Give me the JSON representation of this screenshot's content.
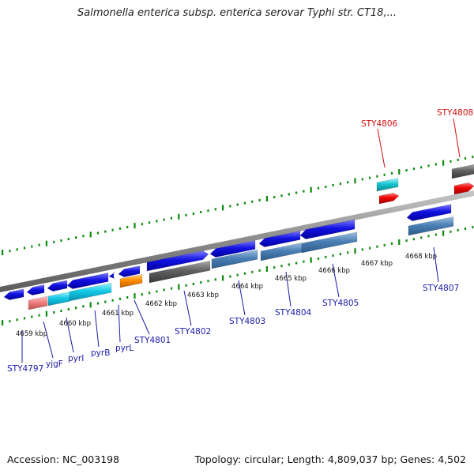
{
  "title": "Salmonella enterica subsp. enterica serovar Typhi str. CT18,...",
  "footer": {
    "accession": "Accession: NC_003198",
    "summary": "Topology: circular; Length: 4,809,037 bp; Genes: 4,502"
  },
  "kbp_labels": [
    "4659 kbp",
    "4660 kbp",
    "4661 kbp",
    "4662 kbp",
    "4663 kbp",
    "4664 kbp",
    "4665 kbp",
    "4666 kbp",
    "4667 kbp",
    "4668 kbp"
  ],
  "gene_labels": [
    {
      "text": "STY4797",
      "color": "#1a1aa8"
    },
    {
      "text": "yjgF",
      "color": "#1a1aa8"
    },
    {
      "text": "pyrI",
      "color": "#1a1aa8"
    },
    {
      "text": "pyrB",
      "color": "#1a1aa8"
    },
    {
      "text": "pyrL",
      "color": "#1a1aa8"
    },
    {
      "text": "STY4801",
      "color": "#1a1aa8"
    },
    {
      "text": "STY4802",
      "color": "#1a1aa8"
    },
    {
      "text": "STY4803",
      "color": "#1a1aa8"
    },
    {
      "text": "STY4804",
      "color": "#1a1aa8"
    },
    {
      "text": "STY4805",
      "color": "#1a1aa8"
    },
    {
      "text": "STY4807",
      "color": "#1a1aa8"
    },
    {
      "text": "STY4806",
      "color": "#d01010"
    },
    {
      "text": "STY4808",
      "color": "#d01010"
    }
  ],
  "colors": {
    "gene_blue": "#1212e0",
    "steel_blue": "#4a7fb5",
    "cyan": "#14c8e6",
    "teal": "#18c4d0",
    "gray": "#606060",
    "orange": "#ff8c00",
    "salmon": "#f08080",
    "red": "#ee0000",
    "backbone": "#888888",
    "ruler": "#0a8a0a"
  }
}
